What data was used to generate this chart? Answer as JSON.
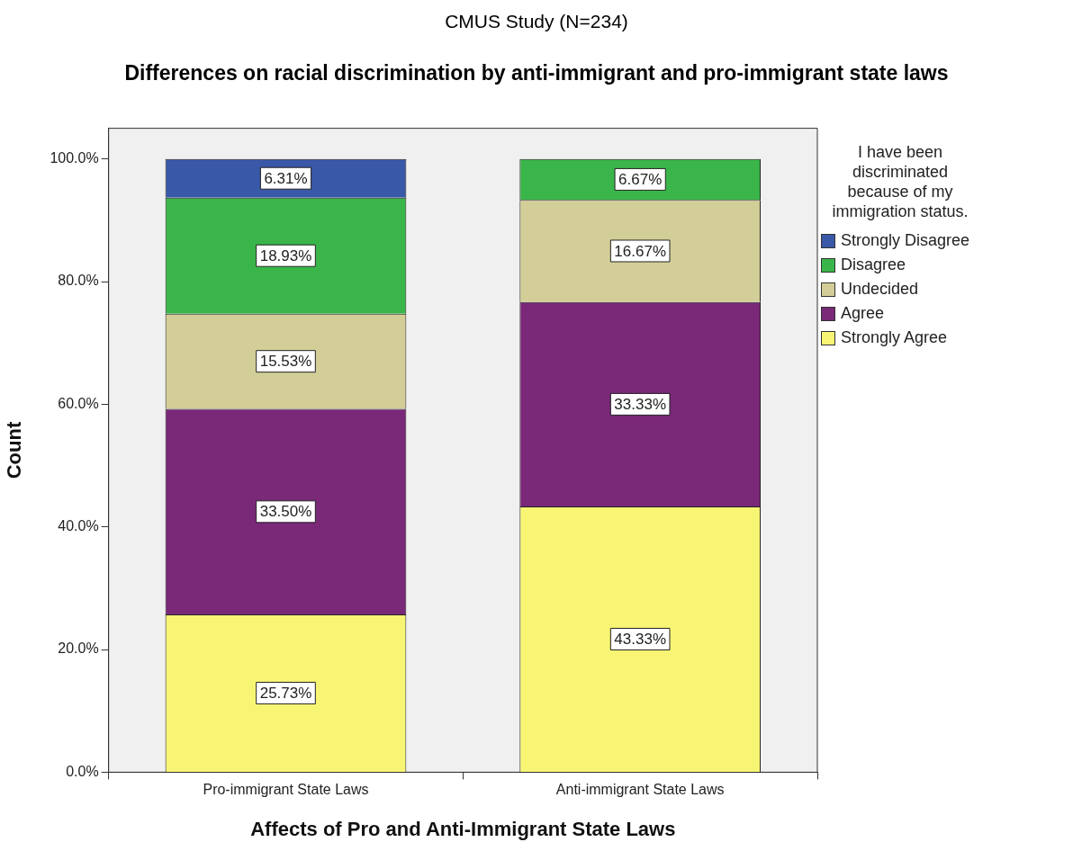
{
  "chart_data": {
    "type": "bar",
    "title": "CMUS Study (N=234)",
    "subtitle": "Differences on racial discrimination by anti-immigrant and pro-immigrant state laws",
    "xlabel": "Affects of Pro and Anti-Immigrant State Laws",
    "ylabel": "Count",
    "legend_title": "I have been discriminated because of my immigration status.",
    "categories": [
      "Pro-immigrant State Laws",
      "Anti-immigrant State Laws"
    ],
    "stacked": true,
    "legend": "right",
    "grid": false,
    "ylim": [
      0,
      105
    ],
    "yticks": [
      {
        "value": 0,
        "label": "0.0%"
      },
      {
        "value": 20,
        "label": "20.0%"
      },
      {
        "value": 40,
        "label": "40.0%"
      },
      {
        "value": 60,
        "label": "60.0%"
      },
      {
        "value": 80,
        "label": "80.0%"
      },
      {
        "value": 100,
        "label": "100.0%"
      }
    ],
    "series": [
      {
        "name": "Strongly Agree",
        "color": "#f8f574",
        "values": [
          25.73,
          43.33
        ],
        "value_labels": [
          "25.73%",
          "43.33%"
        ]
      },
      {
        "name": "Agree",
        "color": "#7a2878",
        "values": [
          33.5,
          33.33
        ],
        "value_labels": [
          "33.50%",
          "33.33%"
        ]
      },
      {
        "name": "Undecided",
        "color": "#d3ce97",
        "values": [
          15.53,
          16.67
        ],
        "value_labels": [
          "15.53%",
          "16.67%"
        ]
      },
      {
        "name": "Disagree",
        "color": "#3ab54a",
        "values": [
          18.93,
          6.67
        ],
        "value_labels": [
          "18.93%",
          "6.67%"
        ]
      },
      {
        "name": "Strongly Disagree",
        "color": "#3a58a8",
        "values": [
          6.31,
          null
        ],
        "value_labels": [
          "6.31%",
          null
        ]
      }
    ]
  }
}
